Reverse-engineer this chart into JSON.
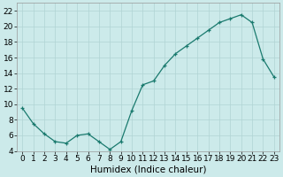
{
  "x": [
    0,
    1,
    2,
    3,
    4,
    5,
    6,
    7,
    8,
    9,
    10,
    11,
    12,
    13,
    14,
    15,
    16,
    17,
    18,
    19,
    20,
    21,
    22,
    23
  ],
  "y": [
    9.5,
    7.5,
    6.2,
    5.2,
    5.0,
    6.0,
    6.2,
    5.2,
    4.2,
    5.2,
    9.2,
    12.5,
    13.0,
    15.0,
    16.5,
    17.5,
    18.5,
    19.5,
    20.5,
    21.0,
    21.5,
    20.5,
    15.8,
    13.5
  ],
  "line_color": "#1a7a6e",
  "marker_color": "#1a7a6e",
  "bg_color": "#cceaea",
  "grid_color": "#b0d4d4",
  "xlabel": "Humidex (Indice chaleur)",
  "ylim": [
    4,
    23
  ],
  "xlim": [
    -0.5,
    23.5
  ],
  "yticks": [
    4,
    6,
    8,
    10,
    12,
    14,
    16,
    18,
    20,
    22
  ],
  "xticks": [
    0,
    1,
    2,
    3,
    4,
    5,
    6,
    7,
    8,
    9,
    10,
    11,
    12,
    13,
    14,
    15,
    16,
    17,
    18,
    19,
    20,
    21,
    22,
    23
  ],
  "xlabel_fontsize": 7.5,
  "tick_fontsize": 6.5
}
